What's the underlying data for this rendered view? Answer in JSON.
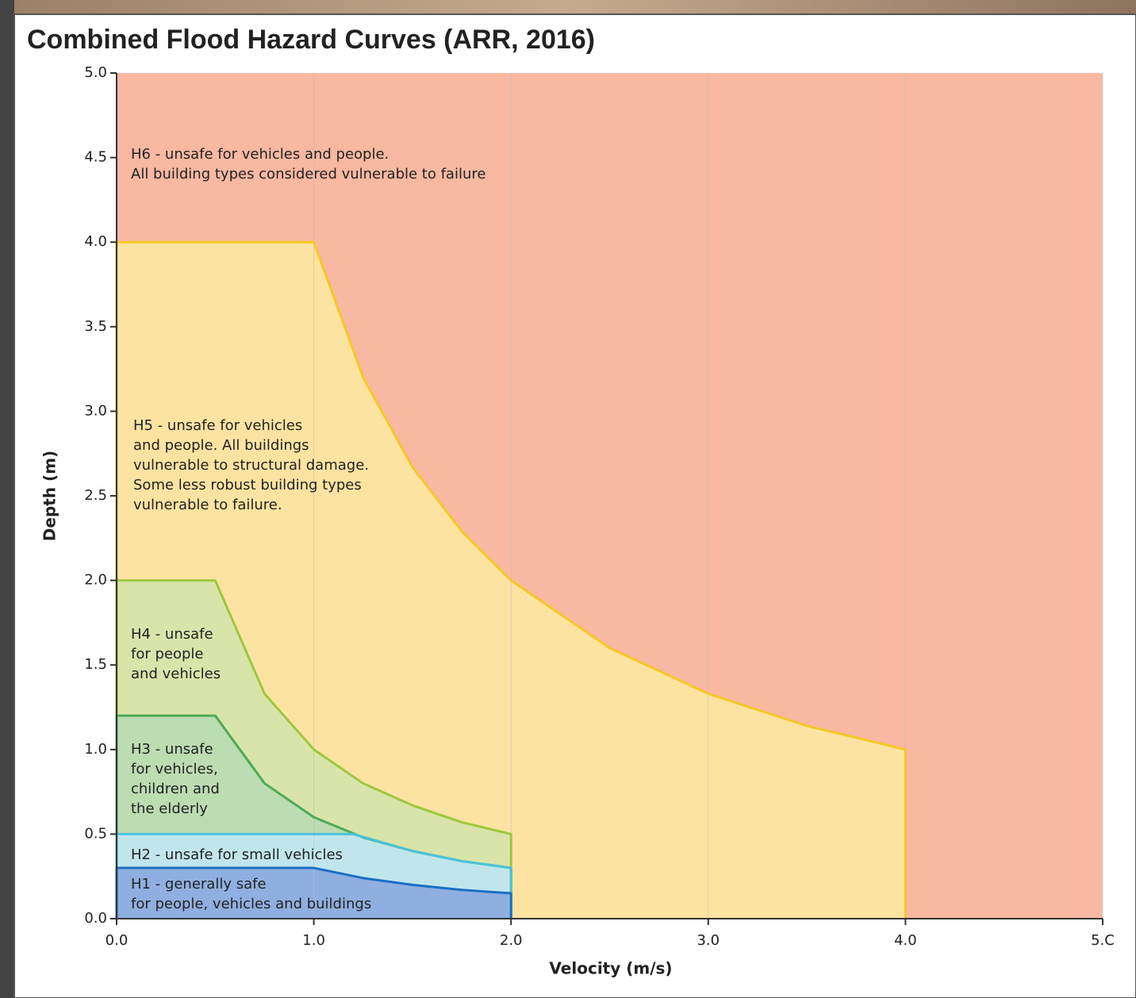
{
  "chart_data": {
    "type": "area",
    "title": "Combined Flood Hazard Curves (ARR, 2016)",
    "x_label": "Velocity (m/s)",
    "y_label": "Depth (m)",
    "xlim": [
      0,
      5
    ],
    "ylim": [
      0,
      5
    ],
    "grid": true,
    "xticks": [
      {
        "value": 0,
        "label": "0.0"
      },
      {
        "value": 1,
        "label": "1.0"
      },
      {
        "value": 2,
        "label": "2.0"
      },
      {
        "value": 3,
        "label": "3.0"
      },
      {
        "value": 4,
        "label": "4.0"
      },
      {
        "value": 5,
        "label": "5.C"
      }
    ],
    "yticks": [
      {
        "value": 0,
        "label": "0.0"
      },
      0.5,
      {
        "value": 1,
        "label": "1.0"
      },
      1.5,
      {
        "value": 2,
        "label": "2.0"
      },
      2.5,
      {
        "value": 3,
        "label": "3.0"
      },
      3.5,
      {
        "value": 4,
        "label": "4.0"
      },
      4.5,
      {
        "value": 5,
        "label": "5.0"
      }
    ],
    "series": [
      {
        "name": "H6",
        "color": "#f8b8a2",
        "fill": "#f8b8a2",
        "lines": [
          "H6 - unsafe for vehicles and people.",
          "All building types considered vulnerable to failure"
        ],
        "x": [
          0,
          0,
          5,
          5
        ],
        "values": [
          0,
          5,
          5,
          0
        ]
      },
      {
        "name": "H5",
        "color": "#f5c824",
        "fill": "#fde3a2",
        "lines": [
          "H5 - unsafe for vehicles",
          "and people. All buildings",
          "vulnerable to structural damage.",
          "Some less robust building types",
          "vulnerable to failure."
        ],
        "x": [
          0,
          0,
          1,
          1.25,
          1.5,
          1.75,
          2,
          2.5,
          3,
          3.5,
          4,
          4
        ],
        "values": [
          0,
          4,
          4,
          3.2,
          2.67,
          2.29,
          2,
          1.6,
          1.33,
          1.14,
          1,
          0
        ]
      },
      {
        "name": "H4",
        "color": "#9cc83e",
        "fill": "#d9e4aa",
        "lines": [
          "H4 - unsafe",
          "for people",
          "and vehicles"
        ],
        "x": [
          0,
          0,
          0.5,
          0.75,
          1,
          1.25,
          1.5,
          1.75,
          2,
          2
        ],
        "values": [
          0,
          2,
          2,
          1.33,
          1,
          0.8,
          0.67,
          0.57,
          0.5,
          0
        ]
      },
      {
        "name": "H3",
        "color": "#4cab55",
        "fill": "#bcdcb2",
        "lines": [
          "H3 - unsafe",
          "for vehicles,",
          "children and",
          "the elderly"
        ],
        "x": [
          0,
          0,
          0.5,
          0.75,
          1,
          1.25,
          1.5,
          1.75,
          2,
          2
        ],
        "values": [
          0,
          1.2,
          1.2,
          0.8,
          0.6,
          0.48,
          0.4,
          0.34,
          0.3,
          0
        ]
      },
      {
        "name": "H2",
        "color": "#4cc2da",
        "fill": "#c0e6ec",
        "lines": [
          "H2 - unsafe for small vehicles"
        ],
        "x": [
          0,
          0,
          1.2,
          1.5,
          1.75,
          2,
          2
        ],
        "values": [
          0,
          0.5,
          0.5,
          0.4,
          0.34,
          0.3,
          0
        ]
      },
      {
        "name": "H1",
        "color": "#1a6fc2",
        "fill": "#8fafe0",
        "lines": [
          "H1 - generally safe",
          "for people, vehicles and buildings"
        ],
        "x": [
          0,
          0,
          1,
          1.25,
          1.5,
          1.75,
          2,
          2
        ],
        "values": [
          0,
          0.3,
          0.3,
          0.24,
          0.2,
          0.17,
          0.15,
          0
        ]
      }
    ]
  }
}
